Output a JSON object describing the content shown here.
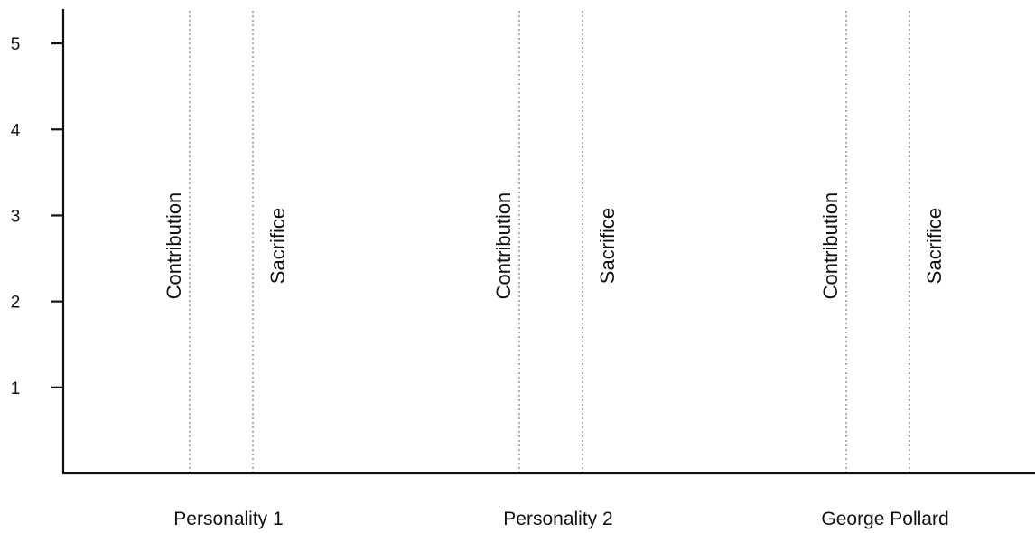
{
  "chart_data": {
    "type": "bar",
    "title": "",
    "xlabel": "",
    "ylabel": "",
    "ylim": [
      0,
      5.4
    ],
    "yticks": [
      1,
      2,
      3,
      4,
      5
    ],
    "grid": false,
    "categories": [
      "Personality 1",
      "Personality 2",
      "George Pollard"
    ],
    "series": [
      {
        "name": "Contribution",
        "values": [
          5.4,
          5.4,
          5.4
        ]
      },
      {
        "name": "Sacrifice",
        "values": [
          5.4,
          5.4,
          5.4
        ]
      }
    ],
    "line_color": "#999999",
    "axis_color": "#111111"
  }
}
